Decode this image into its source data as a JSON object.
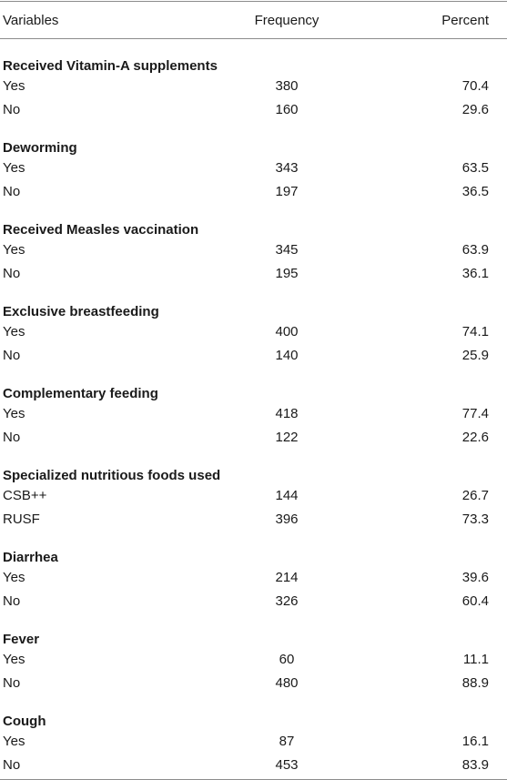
{
  "header": {
    "variables": "Variables",
    "frequency": "Frequency",
    "percent": "Percent"
  },
  "sections": [
    {
      "title": "Received Vitamin-A supplements",
      "rows": [
        {
          "label": "Yes",
          "frequency": "380",
          "percent": "70.4"
        },
        {
          "label": "No",
          "frequency": "160",
          "percent": "29.6"
        }
      ]
    },
    {
      "title": "Deworming",
      "rows": [
        {
          "label": "Yes",
          "frequency": "343",
          "percent": "63.5"
        },
        {
          "label": "No",
          "frequency": "197",
          "percent": "36.5"
        }
      ]
    },
    {
      "title": "Received Measles vaccination",
      "rows": [
        {
          "label": "Yes",
          "frequency": "345",
          "percent": "63.9"
        },
        {
          "label": "No",
          "frequency": "195",
          "percent": "36.1"
        }
      ]
    },
    {
      "title": "Exclusive breastfeeding",
      "rows": [
        {
          "label": "Yes",
          "frequency": "400",
          "percent": "74.1"
        },
        {
          "label": "No",
          "frequency": "140",
          "percent": "25.9"
        }
      ]
    },
    {
      "title": "Complementary feeding",
      "rows": [
        {
          "label": "Yes",
          "frequency": "418",
          "percent": "77.4"
        },
        {
          "label": "No",
          "frequency": "122",
          "percent": "22.6"
        }
      ]
    },
    {
      "title": "Specialized nutritious foods used",
      "rows": [
        {
          "label": "CSB++",
          "frequency": "144",
          "percent": "26.7"
        },
        {
          "label": "RUSF",
          "frequency": "396",
          "percent": "73.3"
        }
      ]
    },
    {
      "title": "Diarrhea",
      "rows": [
        {
          "label": "Yes",
          "frequency": "214",
          "percent": "39.6"
        },
        {
          "label": "No",
          "frequency": "326",
          "percent": "60.4"
        }
      ]
    },
    {
      "title": "Fever",
      "rows": [
        {
          "label": "Yes",
          "frequency": "60",
          "percent": "11.1"
        },
        {
          "label": "No",
          "frequency": "480",
          "percent": "88.9"
        }
      ]
    },
    {
      "title": "Cough",
      "rows": [
        {
          "label": "Yes",
          "frequency": "87",
          "percent": "16.1"
        },
        {
          "label": "No",
          "frequency": "453",
          "percent": "83.9"
        }
      ]
    }
  ]
}
